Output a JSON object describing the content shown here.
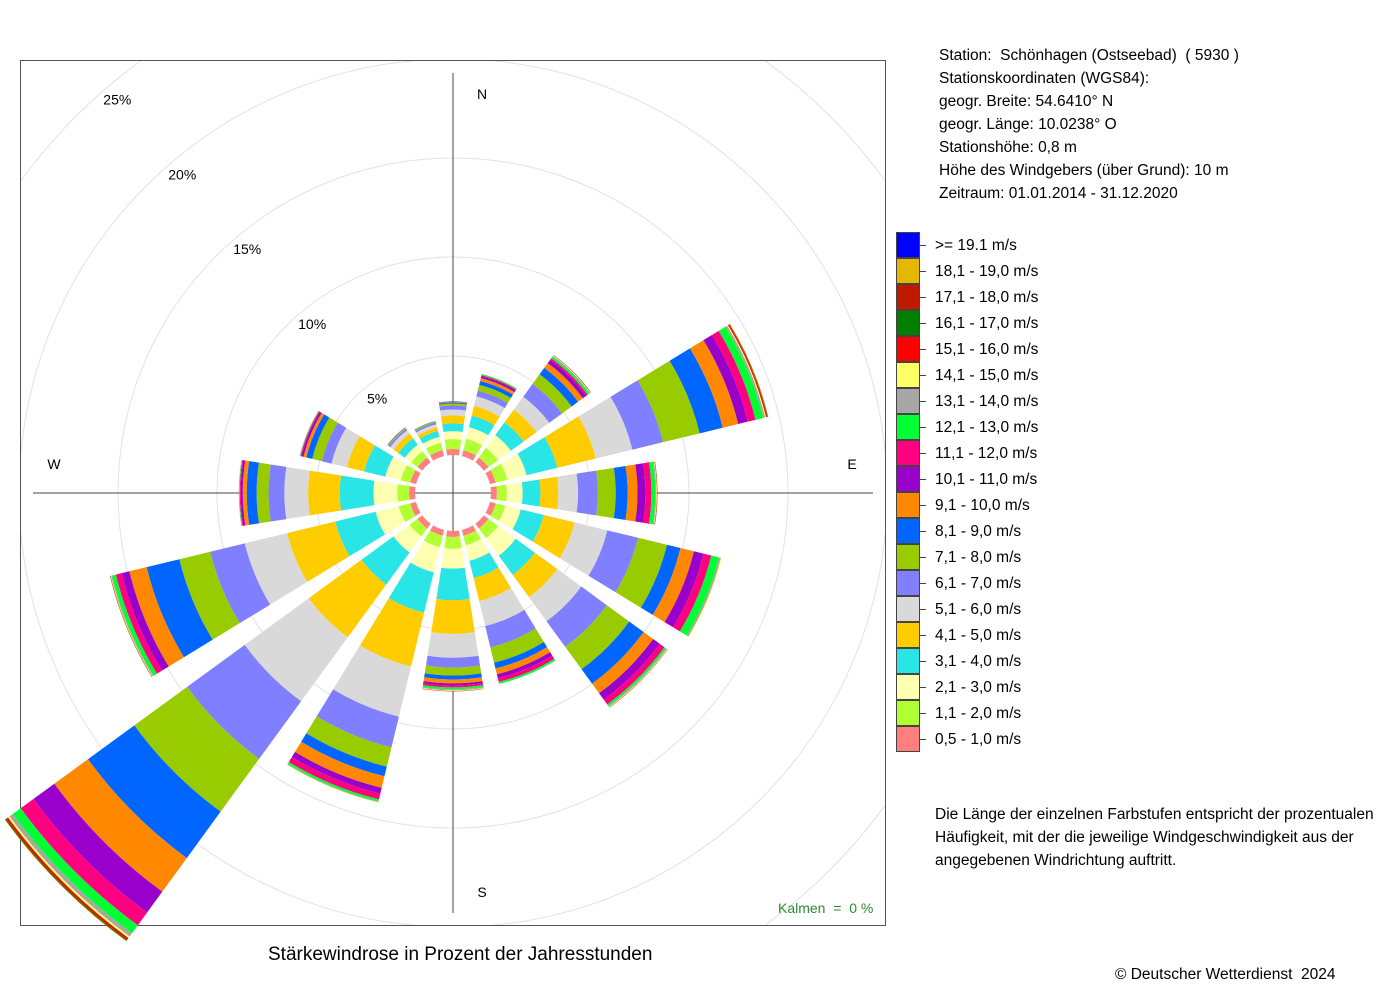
{
  "chart_data": {
    "type": "windrose",
    "title": "Stärkewindrose in Prozent der Jahresstunden",
    "calm_text": "Kalmen  =  0 %",
    "directions": [
      "N",
      "NNE",
      "NE",
      "ENE",
      "E",
      "ESE",
      "SE",
      "SSE",
      "S",
      "SSW",
      "SW",
      "WSW",
      "W",
      "WNW",
      "NW",
      "NNW"
    ],
    "direction_labels": [
      "N",
      "E",
      "S",
      "W"
    ],
    "ring_labels": [
      "5%",
      "10%",
      "15%",
      "20%",
      "25%"
    ],
    "ring_values": [
      5,
      10,
      15,
      20,
      25
    ],
    "speed_classes": [
      {
        "label": "0,5 - 1,0 m/s",
        "color": "#ff7f7f"
      },
      {
        "label": "1,1 - 2,0 m/s",
        "color": "#b2ff33"
      },
      {
        "label": "2,1 - 3,0 m/s",
        "color": "#ffffb2"
      },
      {
        "label": "3,1 - 4,0 m/s",
        "color": "#29e5e5"
      },
      {
        "label": "4,1 - 5,0 m/s",
        "color": "#ffcc00"
      },
      {
        "label": "5,1 - 6,0 m/s",
        "color": "#d9d9d9"
      },
      {
        "label": "6,1 - 7,0 m/s",
        "color": "#7f7fff"
      },
      {
        "label": "7,1 - 8,0 m/s",
        "color": "#99cc00"
      },
      {
        "label": "8,1 - 9,0 m/s",
        "color": "#0066ff"
      },
      {
        "label": "9,1 - 10,0 m/s",
        "color": "#ff8800"
      },
      {
        "label": "10,1 - 11,0 m/s",
        "color": "#9900cc"
      },
      {
        "label": "11,1 - 12,0 m/s",
        "color": "#ff0080"
      },
      {
        "label": "12,1 - 13,0 m/s",
        "color": "#00ff33"
      },
      {
        "label": "13,1 - 14,0 m/s",
        "color": "#a6a6a6"
      },
      {
        "label": "14,1 - 15,0 m/s",
        "color": "#ffff66"
      },
      {
        "label": "15,1 - 16,0 m/s",
        "color": "#ff0000"
      },
      {
        "label": "16,1 - 17,0 m/s",
        "color": "#007f00"
      },
      {
        "label": "17,1 - 18,0 m/s",
        "color": "#bf1a00"
      },
      {
        "label": "18,1 - 19,0 m/s",
        "color": "#e5b800"
      },
      {
        "label": ">= 19.1 m/s",
        "color": "#0000ff"
      }
    ],
    "values": [
      [
        0.3,
        0.5,
        0.4,
        0.4,
        0.4,
        0.3,
        0.2,
        0.1,
        0.05,
        0.03,
        0.02,
        0.01,
        0.01,
        0,
        0,
        0,
        0,
        0,
        0,
        0
      ],
      [
        0.3,
        0.6,
        0.6,
        0.6,
        0.5,
        0.5,
        0.3,
        0.3,
        0.2,
        0.15,
        0.1,
        0.05,
        0.05,
        0.02,
        0.01,
        0,
        0,
        0,
        0,
        0
      ],
      [
        0.3,
        0.6,
        0.8,
        0.8,
        0.8,
        0.8,
        0.8,
        0.6,
        0.4,
        0.3,
        0.2,
        0.1,
        0.1,
        0.05,
        0.03,
        0.02,
        0.01,
        0,
        0,
        0
      ],
      [
        0.3,
        0.6,
        1.0,
        1.6,
        2.0,
        1.9,
        1.6,
        1.9,
        1.2,
        0.8,
        0.5,
        0.4,
        0.4,
        0.1,
        0.05,
        0.05,
        0.02,
        0.03,
        0.02,
        0
      ],
      [
        0.3,
        0.5,
        0.8,
        0.9,
        0.9,
        1.0,
        1.0,
        0.9,
        0.6,
        0.5,
        0.4,
        0.3,
        0.2,
        0.05,
        0.03,
        0.02,
        0.01,
        0,
        0,
        0
      ],
      [
        0.3,
        0.5,
        0.8,
        1.2,
        1.6,
        1.7,
        1.6,
        1.5,
        0.7,
        0.7,
        0.5,
        0.4,
        0.4,
        0.1,
        0.05,
        0,
        0,
        0,
        0,
        0
      ],
      [
        0.3,
        0.6,
        1.1,
        1.2,
        1.4,
        1.5,
        1.6,
        1.4,
        0.9,
        0.6,
        0.4,
        0.3,
        0.1,
        0.05,
        0.03,
        0.02,
        0,
        0,
        0,
        0
      ],
      [
        0.3,
        0.5,
        0.8,
        0.9,
        1.2,
        1.3,
        1.1,
        0.8,
        0.3,
        0.3,
        0.2,
        0.2,
        0.1,
        0,
        0,
        0,
        0,
        0,
        0,
        0
      ],
      [
        0.3,
        0.6,
        1.0,
        1.6,
        1.7,
        1.2,
        0.5,
        0.4,
        0.2,
        0.2,
        0.1,
        0.1,
        0.1,
        0.05,
        0.03,
        0.02,
        0,
        0,
        0,
        0
      ],
      [
        0.3,
        0.6,
        1.3,
        2.1,
        2.8,
        2.6,
        1.6,
        1.0,
        0.5,
        0.6,
        0.3,
        0.3,
        0.1,
        0.05,
        0.03,
        0,
        0,
        0,
        0,
        0
      ],
      [
        0.3,
        0.5,
        1.0,
        2.0,
        3.3,
        4.0,
        3.6,
        3.3,
        2.9,
        2.1,
        1.3,
        0.8,
        0.5,
        0.2,
        0.1,
        0.1,
        0.05,
        0.03,
        0.02,
        0
      ],
      [
        0.3,
        0.6,
        1.2,
        2.1,
        2.5,
        2.2,
        1.8,
        1.6,
        1.7,
        0.9,
        0.4,
        0.3,
        0.2,
        0.05,
        0.03,
        0.02,
        0.01,
        0,
        0,
        0
      ],
      [
        0.3,
        0.6,
        1.2,
        1.7,
        1.6,
        1.2,
        0.8,
        0.6,
        0.5,
        0.2,
        0.1,
        0.05,
        0.03,
        0.02,
        0,
        0,
        0,
        0,
        0,
        0
      ],
      [
        0.3,
        0.5,
        0.8,
        1.1,
        0.9,
        0.8,
        0.5,
        0.5,
        0.3,
        0.15,
        0.1,
        0.05,
        0.03,
        0.02,
        0,
        0,
        0,
        0,
        0,
        0
      ],
      [
        0.3,
        0.4,
        0.4,
        0.4,
        0.3,
        0.2,
        0.1,
        0.05,
        0.02,
        0.01,
        0.01,
        0,
        0,
        0,
        0,
        0,
        0,
        0,
        0,
        0
      ],
      [
        0.3,
        0.4,
        0.3,
        0.3,
        0.2,
        0.15,
        0.1,
        0.05,
        0.02,
        0.01,
        0,
        0,
        0,
        0,
        0,
        0,
        0,
        0,
        0,
        0
      ]
    ],
    "grid": true,
    "legend_position": "right"
  },
  "station": {
    "line1": "Station:  Schönhagen (Ostseebad)  ( 5930 )",
    "line2": "Stationskoordinaten (WGS84):",
    "line3": "geogr. Breite: 54.6410° N",
    "line4": "geogr. Länge: 10.0238° O",
    "line5": "Stationshöhe: 0,8 m",
    "line6": "Höhe des Windgebers (über Grund): 10 m",
    "line7": "Zeitraum: 01.01.2014 - 31.12.2020"
  },
  "note": "Die Länge der einzelnen Farbstufen entspricht der prozentualen Häufigkeit, mit der die jeweilige Windgeschwindigkeit aus der angegebenen Windrichtung auftritt.",
  "copyright": "© Deutscher Wetterdienst  2024"
}
